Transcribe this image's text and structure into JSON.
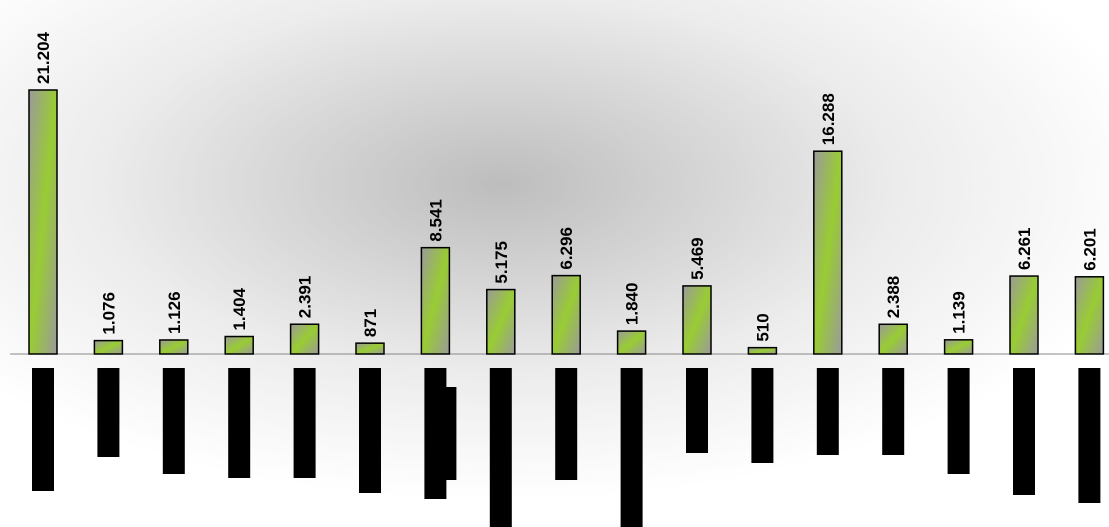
{
  "chart_data": {
    "type": "bar",
    "categories": [
      null,
      null,
      null,
      null,
      null,
      null,
      null,
      null,
      null,
      null,
      null,
      null,
      null,
      null,
      null,
      null,
      null
    ],
    "values": [
      21204,
      1076,
      1126,
      1404,
      2391,
      871,
      8541,
      5175,
      6296,
      1840,
      5469,
      510,
      16288,
      2388,
      1139,
      6261,
      6201
    ],
    "value_labels": [
      "21.204",
      "1.076",
      "1.126",
      "1.404",
      "2.391",
      "871",
      "8.541",
      "5.175",
      "6.296",
      "1.840",
      "5.469",
      "510",
      "16.288",
      "2.388",
      "1.139",
      "6.261",
      "6.201"
    ],
    "color": "#99cc33"
  }
}
